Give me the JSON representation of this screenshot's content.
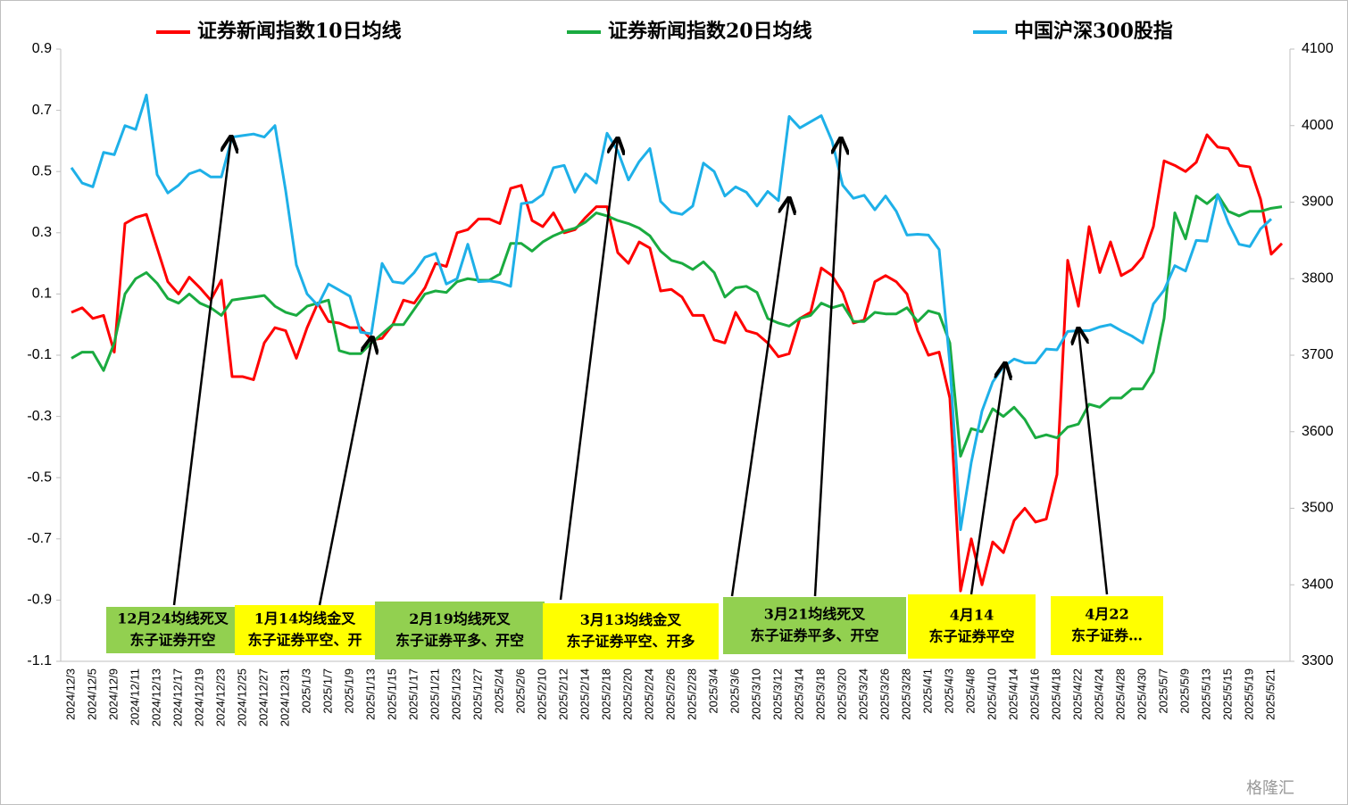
{
  "chart_data": {
    "type": "line",
    "watermark": "格隆汇",
    "categories": [
      "2024/12/3",
      null,
      "2024/12/5",
      null,
      "2024/12/9",
      null,
      "2024/12/11",
      null,
      "2024/12/13",
      null,
      "2024/12/17",
      null,
      "2024/12/19",
      null,
      "2024/12/23",
      null,
      "2024/12/25",
      null,
      "2024/12/27",
      null,
      "2024/12/31",
      null,
      "2025/1/3",
      null,
      "2025/1/7",
      null,
      "2025/1/9",
      null,
      "2025/1/13",
      null,
      "2025/1/15",
      null,
      "2025/1/17",
      null,
      "2025/1/21",
      null,
      "2025/1/23",
      null,
      "2025/1/27",
      null,
      "2025/2/4",
      null,
      "2025/2/6",
      null,
      "2025/2/10",
      null,
      "2025/2/12",
      null,
      "2025/2/14",
      null,
      "2025/2/18",
      null,
      "2025/2/20",
      null,
      "2025/2/24",
      null,
      "2025/2/26",
      null,
      "2025/2/28",
      null,
      "2025/3/4",
      null,
      "2025/3/6",
      null,
      "2025/3/10",
      null,
      "2025/3/12",
      null,
      "2025/3/14",
      null,
      "2025/3/18",
      null,
      "2025/3/20",
      null,
      "2025/3/24",
      null,
      "2025/3/26",
      null,
      "2025/3/28",
      null,
      "2025/4/1",
      null,
      "2025/4/3",
      null,
      "2025/4/8",
      null,
      "2025/4/10",
      null,
      "2025/4/14",
      null,
      "2025/4/16",
      null,
      "2025/4/18",
      null,
      "2025/4/22",
      null,
      "2025/4/24",
      null,
      "2025/4/28",
      null,
      "2025/4/30",
      null,
      "2025/5/7",
      null,
      "2025/5/9",
      null,
      "2025/5/13",
      null,
      "2025/5/15",
      null,
      "2025/5/19",
      null,
      "2025/5/21",
      null
    ],
    "series": [
      {
        "name": "证券新闻指数10日均线",
        "color": "#ff0000",
        "values": [
          0.04,
          0.055,
          0.02,
          0.03,
          -0.09,
          0.33,
          0.35,
          0.36,
          0.25,
          0.14,
          0.1,
          0.155,
          0.12,
          0.08,
          0.145,
          -0.17,
          -0.17,
          -0.18,
          -0.06,
          -0.01,
          -0.02,
          -0.11,
          -0.01,
          0.07,
          0.01,
          0.005,
          -0.01,
          -0.01,
          -0.05,
          -0.045,
          0.0,
          0.08,
          0.07,
          0.12,
          0.2,
          0.19,
          0.3,
          0.31,
          0.345,
          0.345,
          0.33,
          0.445,
          0.455,
          0.34,
          0.32,
          0.365,
          0.3,
          0.31,
          0.35,
          0.385,
          0.385,
          0.235,
          0.2,
          0.27,
          0.25,
          0.11,
          0.115,
          0.09,
          0.03,
          0.03,
          -0.05,
          -0.06,
          0.04,
          -0.02,
          -0.03,
          -0.06,
          -0.105,
          -0.095,
          0.02,
          0.04,
          0.185,
          0.16,
          0.105,
          0.005,
          0.015,
          0.14,
          0.16,
          0.14,
          0.1,
          -0.02,
          -0.1,
          -0.09,
          -0.24,
          -0.87,
          -0.7,
          -0.85,
          -0.71,
          -0.745,
          -0.64,
          -0.6,
          -0.645,
          -0.635,
          -0.49,
          0.21,
          0.06,
          0.32,
          0.17,
          0.27,
          0.16,
          0.18,
          0.22,
          0.32,
          0.535,
          0.52,
          0.5,
          0.53,
          0.62,
          0.58,
          0.575,
          0.52,
          0.515,
          0.41,
          0.23,
          0.265
        ]
      },
      {
        "name": "证券新闻指数20日均线",
        "color": "#1aab40",
        "values": [
          -0.11,
          -0.09,
          -0.09,
          -0.15,
          -0.06,
          0.1,
          0.15,
          0.17,
          0.135,
          0.085,
          0.07,
          0.1,
          0.07,
          0.055,
          0.03,
          0.08,
          0.085,
          0.09,
          0.095,
          0.06,
          0.04,
          0.03,
          0.06,
          0.07,
          0.08,
          -0.085,
          -0.095,
          -0.095,
          -0.06,
          -0.03,
          0.0,
          0.0,
          0.05,
          0.1,
          0.11,
          0.105,
          0.14,
          0.15,
          0.145,
          0.145,
          0.165,
          0.265,
          0.265,
          0.24,
          0.27,
          0.29,
          0.305,
          0.315,
          0.335,
          0.365,
          0.355,
          0.34,
          0.33,
          0.315,
          0.29,
          0.24,
          0.21,
          0.2,
          0.18,
          0.205,
          0.17,
          0.09,
          0.12,
          0.125,
          0.105,
          0.02,
          0.005,
          -0.005,
          0.02,
          0.03,
          0.07,
          0.055,
          0.065,
          0.01,
          0.01,
          0.04,
          0.035,
          0.035,
          0.055,
          0.01,
          0.045,
          0.035,
          -0.06,
          -0.43,
          -0.34,
          -0.35,
          -0.275,
          -0.3,
          -0.27,
          -0.31,
          -0.37,
          -0.36,
          -0.37,
          -0.335,
          -0.325,
          -0.26,
          -0.27,
          -0.24,
          -0.24,
          -0.21,
          -0.21,
          -0.155,
          0.02,
          0.365,
          0.28,
          0.42,
          0.395,
          0.425,
          0.37,
          0.355,
          0.37,
          0.37,
          0.38,
          0.385
        ]
      },
      {
        "name": "中国沪深300股指",
        "color": "#1eb0e8",
        "axis": "y2",
        "values": [
          3945,
          3925,
          3920,
          3965,
          3962,
          4000,
          3995,
          4040,
          3936,
          3912,
          3922,
          3937,
          3942,
          3933,
          3933,
          3985,
          3987,
          3989,
          3985,
          4000,
          3915,
          3818,
          3780,
          3765,
          3793,
          3785,
          3777,
          3730,
          3728,
          3820,
          3796,
          3794,
          3808,
          3828,
          3833,
          3793,
          3800,
          3845,
          3796,
          3797,
          3795,
          3790,
          3898,
          3900,
          3910,
          3945,
          3948,
          3913,
          3937,
          3925,
          3990,
          3967,
          3929,
          3953,
          3970,
          3901,
          3887,
          3884,
          3895,
          3951,
          3940,
          3908,
          3920,
          3913,
          3895,
          3914,
          3902,
          4012,
          3997,
          4005,
          4013,
          3980,
          3922,
          3905,
          3909,
          3890,
          3908,
          3888,
          3857,
          3858,
          3857,
          3838,
          3689,
          3472,
          3560,
          3627,
          3665,
          3685,
          3695,
          3690,
          3690,
          3708,
          3707,
          3731,
          3732,
          3732,
          3737,
          3740,
          3732,
          3725,
          3716,
          3767,
          3785,
          3817,
          3810,
          3850,
          3849,
          3910,
          3873,
          3845,
          3842,
          3865,
          3878,
          null
        ]
      }
    ],
    "ylim": [
      -1.1,
      0.9
    ],
    "yticks": [
      -1.1,
      -0.9,
      -0.7,
      -0.5,
      -0.3,
      -0.1,
      0.1,
      0.3,
      0.5,
      0.7,
      0.9
    ],
    "y2lim": [
      3300,
      4100
    ],
    "y2ticks": [
      3300,
      3400,
      3500,
      3600,
      3700,
      3800,
      3900,
      4000,
      4100
    ],
    "legend": "top",
    "annotations": [
      {
        "lines": [
          "12月24均线死叉",
          "东子证券开空"
        ],
        "color": "#92d050"
      },
      {
        "lines": [
          "1月14均线金叉",
          "东子证券平空、开"
        ],
        "color": "#ffff00"
      },
      {
        "lines": [
          "2月19均线死叉",
          "东子证券平多、开空"
        ],
        "color": "#92d050"
      },
      {
        "lines": [
          "3月13均线金叉",
          "东子证券平空、开多"
        ],
        "color": "#ffff00"
      },
      {
        "lines": [
          "3月21均线死叉",
          "东子证券平多、开空"
        ],
        "color": "#92d050"
      },
      {
        "lines": [
          "4月14",
          "东子证券平空"
        ],
        "color": "#ffff00"
      },
      {
        "lines": [
          "4月22",
          "东子证券…"
        ],
        "color": "#ffff00"
      }
    ]
  }
}
